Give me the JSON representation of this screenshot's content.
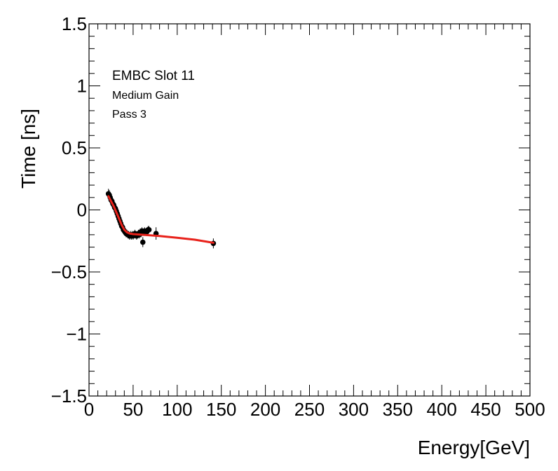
{
  "chart_data": {
    "type": "scatter",
    "title": "",
    "xlabel": "Energy[GeV]",
    "ylabel": "Time [ns]",
    "xlim": [
      0,
      500
    ],
    "ylim": [
      -1.5,
      1.5
    ],
    "x_ticks": [
      0,
      50,
      100,
      150,
      200,
      250,
      300,
      350,
      400,
      450,
      500
    ],
    "x_tick_labels": [
      "0",
      "50",
      "100",
      "150",
      "200",
      "250",
      "300",
      "350",
      "400",
      "450",
      "500"
    ],
    "y_ticks": [
      -1.5,
      -1,
      -0.5,
      0,
      0.5,
      1,
      1.5
    ],
    "y_tick_labels": [
      "−1.5",
      "−1",
      "−0.5",
      "0",
      "0.5",
      "1",
      "1.5"
    ],
    "annotations": [
      "EMBC Slot 11",
      "Medium Gain",
      "Pass 3"
    ],
    "grid": false,
    "series": [
      {
        "name": "data",
        "marker": "circle",
        "color": "#000000",
        "points": [
          {
            "x": 22,
            "y": 0.13,
            "err": 0.04
          },
          {
            "x": 23,
            "y": 0.12,
            "err": 0.04
          },
          {
            "x": 24,
            "y": 0.1,
            "err": 0.03
          },
          {
            "x": 25,
            "y": 0.08,
            "err": 0.03
          },
          {
            "x": 26,
            "y": 0.07,
            "err": 0.03
          },
          {
            "x": 27,
            "y": 0.05,
            "err": 0.03
          },
          {
            "x": 28,
            "y": 0.04,
            "err": 0.03
          },
          {
            "x": 29,
            "y": 0.02,
            "err": 0.03
          },
          {
            "x": 30,
            "y": 0.01,
            "err": 0.03
          },
          {
            "x": 31,
            "y": -0.01,
            "err": 0.03
          },
          {
            "x": 32,
            "y": -0.03,
            "err": 0.03
          },
          {
            "x": 33,
            "y": -0.05,
            "err": 0.03
          },
          {
            "x": 34,
            "y": -0.07,
            "err": 0.03
          },
          {
            "x": 35,
            "y": -0.09,
            "err": 0.03
          },
          {
            "x": 36,
            "y": -0.11,
            "err": 0.03
          },
          {
            "x": 37,
            "y": -0.13,
            "err": 0.03
          },
          {
            "x": 38,
            "y": -0.14,
            "err": 0.03
          },
          {
            "x": 39,
            "y": -0.16,
            "err": 0.03
          },
          {
            "x": 40,
            "y": -0.17,
            "err": 0.03
          },
          {
            "x": 41,
            "y": -0.18,
            "err": 0.03
          },
          {
            "x": 42,
            "y": -0.19,
            "err": 0.03
          },
          {
            "x": 43,
            "y": -0.19,
            "err": 0.03
          },
          {
            "x": 44,
            "y": -0.2,
            "err": 0.03
          },
          {
            "x": 45,
            "y": -0.2,
            "err": 0.03
          },
          {
            "x": 46,
            "y": -0.21,
            "err": 0.03
          },
          {
            "x": 47,
            "y": -0.2,
            "err": 0.03
          },
          {
            "x": 48,
            "y": -0.21,
            "err": 0.03
          },
          {
            "x": 49,
            "y": -0.2,
            "err": 0.03
          },
          {
            "x": 50,
            "y": -0.21,
            "err": 0.03
          },
          {
            "x": 51,
            "y": -0.2,
            "err": 0.03
          },
          {
            "x": 52,
            "y": -0.19,
            "err": 0.03
          },
          {
            "x": 53,
            "y": -0.2,
            "err": 0.03
          },
          {
            "x": 54,
            "y": -0.21,
            "err": 0.03
          },
          {
            "x": 55,
            "y": -0.2,
            "err": 0.03
          },
          {
            "x": 56,
            "y": -0.19,
            "err": 0.03
          },
          {
            "x": 57,
            "y": -0.2,
            "err": 0.03
          },
          {
            "x": 58,
            "y": -0.18,
            "err": 0.03
          },
          {
            "x": 59,
            "y": -0.19,
            "err": 0.03
          },
          {
            "x": 60,
            "y": -0.17,
            "err": 0.03
          },
          {
            "x": 61,
            "y": -0.26,
            "err": 0.04
          },
          {
            "x": 62,
            "y": -0.18,
            "err": 0.03
          },
          {
            "x": 63,
            "y": -0.17,
            "err": 0.03
          },
          {
            "x": 65,
            "y": -0.18,
            "err": 0.03
          },
          {
            "x": 66,
            "y": -0.17,
            "err": 0.03
          },
          {
            "x": 67,
            "y": -0.16,
            "err": 0.03
          },
          {
            "x": 68,
            "y": -0.16,
            "err": 0.03
          },
          {
            "x": 76,
            "y": -0.19,
            "err": 0.05
          },
          {
            "x": 141,
            "y": -0.27,
            "err": 0.04
          }
        ]
      },
      {
        "name": "fit",
        "type": "line",
        "color": "#e8221b",
        "points": [
          {
            "x": 22,
            "y": 0.11
          },
          {
            "x": 25,
            "y": 0.07
          },
          {
            "x": 28,
            "y": 0.03
          },
          {
            "x": 31,
            "y": -0.02
          },
          {
            "x": 34,
            "y": -0.07
          },
          {
            "x": 37,
            "y": -0.12
          },
          {
            "x": 40,
            "y": -0.16
          },
          {
            "x": 43,
            "y": -0.18
          },
          {
            "x": 46,
            "y": -0.19
          },
          {
            "x": 50,
            "y": -0.195
          },
          {
            "x": 60,
            "y": -0.2
          },
          {
            "x": 80,
            "y": -0.21
          },
          {
            "x": 100,
            "y": -0.225
          },
          {
            "x": 120,
            "y": -0.24
          },
          {
            "x": 141,
            "y": -0.265
          }
        ]
      }
    ]
  }
}
